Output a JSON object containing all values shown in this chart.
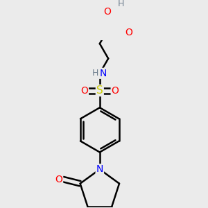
{
  "bg_color": "#ebebeb",
  "atom_colors": {
    "C": "#000000",
    "H": "#708090",
    "N": "#0000ff",
    "O": "#ff0000",
    "S": "#cccc00"
  },
  "bond_color": "#000000",
  "bond_width": 1.8,
  "font_size": 10,
  "figsize": [
    3.0,
    3.0
  ],
  "dpi": 100
}
